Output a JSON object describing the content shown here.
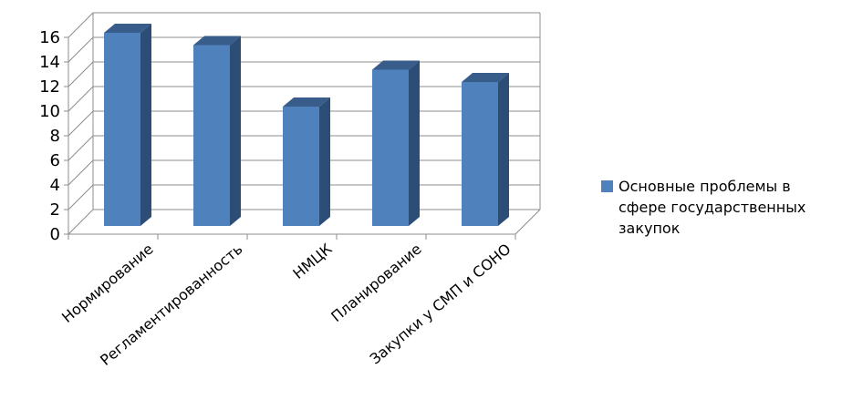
{
  "chart_data": {
    "type": "bar",
    "title": "",
    "xlabel": "",
    "ylabel": "",
    "categories": [
      "Нормирование",
      "Регламентированность",
      "НМЦК",
      "Планирование",
      "Закупки у СМП и СОНО"
    ],
    "series": [
      {
        "name": "Основные проблемы в сфере государственных закупок",
        "values": [
          16,
          15,
          10,
          13,
          12
        ]
      }
    ],
    "ylim": [
      0,
      16
    ],
    "yticks": [
      "0",
      "2",
      "4",
      "6",
      "8",
      "10",
      "12",
      "14",
      "16"
    ],
    "grid": true,
    "legend_position": "right",
    "three_d": true,
    "colors": {
      "bar_front": "#4F81BD",
      "bar_side": "#2C4D75",
      "bar_top": "#385D8A",
      "grid": "#8C8C8C"
    }
  }
}
